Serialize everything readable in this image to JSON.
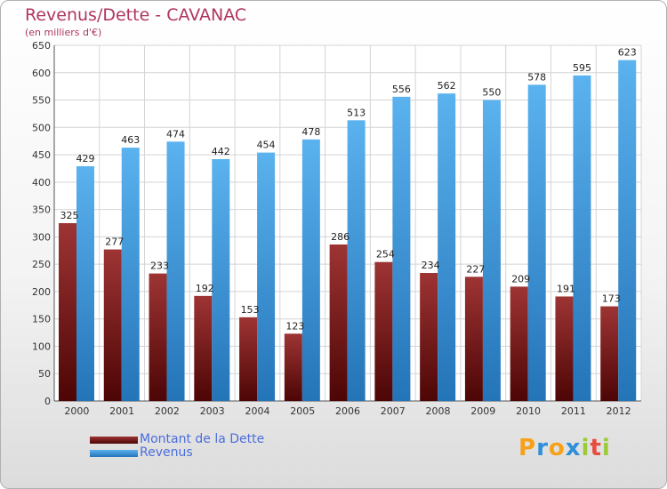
{
  "chart_data": {
    "type": "bar",
    "title": "Revenus/Dette - CAVANAC",
    "subtitle": "(en milliers d'€)",
    "categories": [
      "2000",
      "2001",
      "2002",
      "2003",
      "2004",
      "2005",
      "2006",
      "2007",
      "2008",
      "2009",
      "2010",
      "2011",
      "2012"
    ],
    "series": [
      {
        "name": "Montant de la Dette",
        "color": "#8b1a1a",
        "values": [
          325,
          277,
          233,
          192,
          153,
          123,
          286,
          254,
          234,
          227,
          209,
          191,
          173
        ]
      },
      {
        "name": "Revenus",
        "color": "#4da6e8",
        "values": [
          429,
          463,
          474,
          442,
          454,
          478,
          513,
          556,
          562,
          550,
          578,
          595,
          623
        ]
      }
    ],
    "ylim": [
      0,
      650
    ],
    "yticks": [
      0,
      50,
      100,
      150,
      200,
      250,
      300,
      350,
      400,
      450,
      500,
      550,
      600,
      650
    ],
    "grid": true,
    "legend_position": "bottom-left"
  },
  "logo": {
    "letters": [
      "P",
      "r",
      "o",
      "x",
      "i",
      "t",
      "i"
    ],
    "colors": [
      "#f7a11a",
      "#2f8fd8",
      "#f7a11a",
      "#2f8fd8",
      "#9bcb3c",
      "#e84c3d",
      "#9bcb3c"
    ]
  }
}
